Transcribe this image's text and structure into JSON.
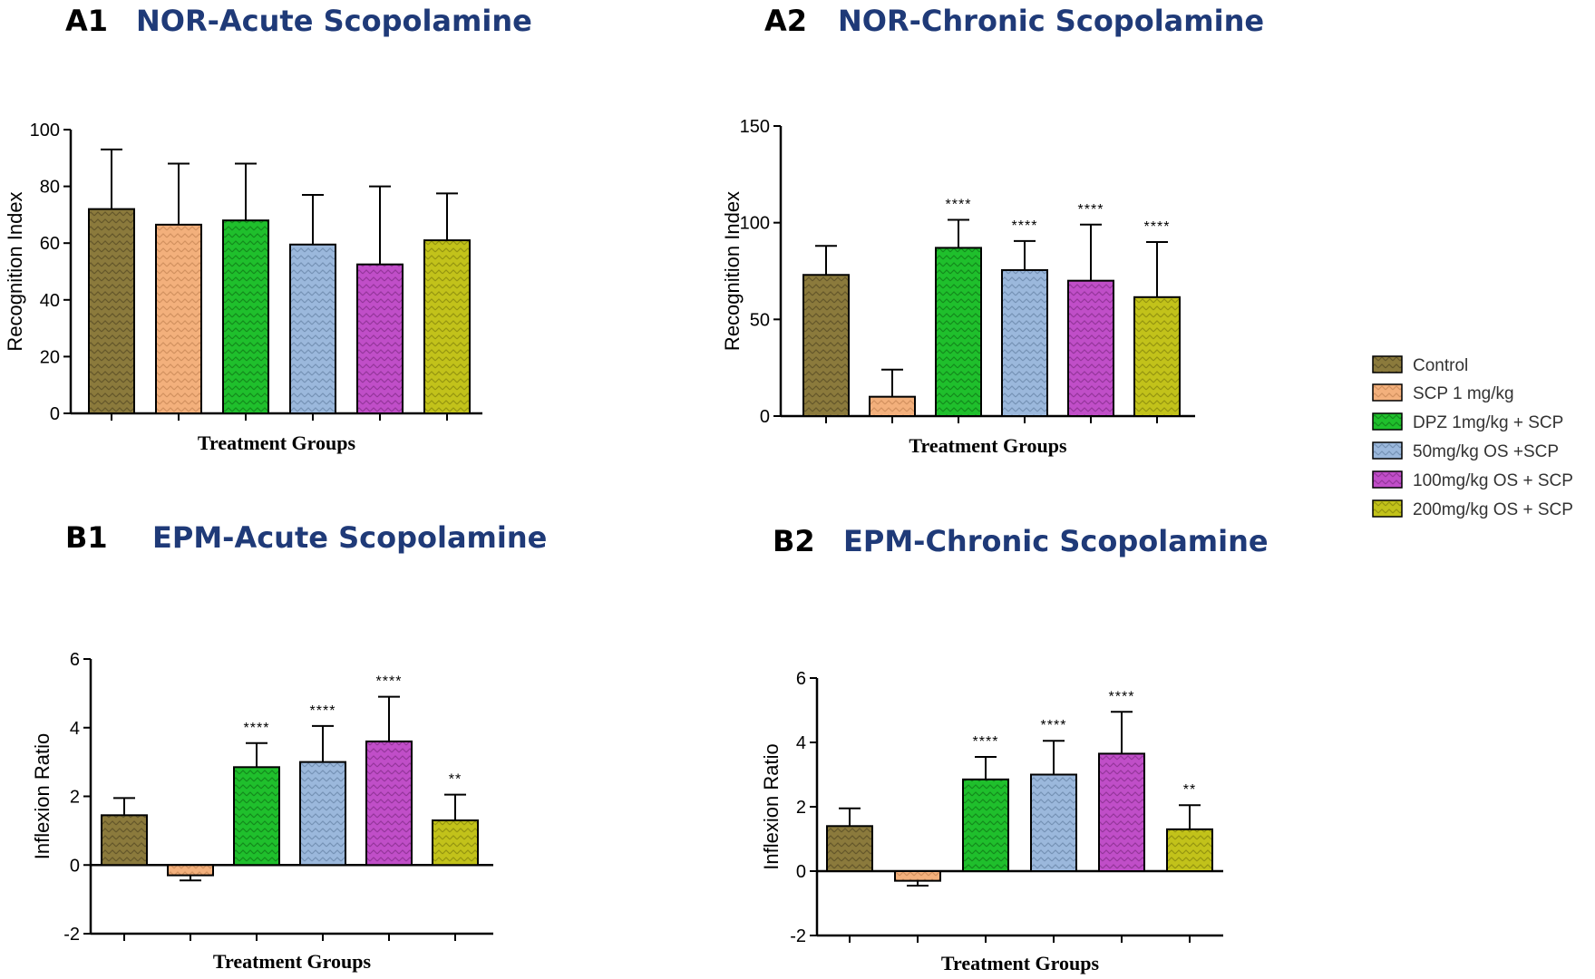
{
  "legend": {
    "entries": [
      "Control",
      "SCP 1 mg/kg",
      "DPZ 1mg/kg + SCP",
      "50mg/kg OS +SCP",
      "100mg/kg OS + SCP",
      "200mg/kg OS + SCP"
    ],
    "colors": [
      "#8b7a3c",
      "#f3b07c",
      "#1fbf2c",
      "#9bb8dc",
      "#c04ec8",
      "#c2c21a"
    ],
    "pattern_colors": [
      "#5a4e24",
      "#c98a58",
      "#0f7d18",
      "#6b88ab",
      "#8a2f90",
      "#8a8a0c"
    ]
  },
  "title_color": "#1f3a78",
  "chart_data": [
    {
      "id": "A1",
      "panel_label": "A1",
      "title": "NOR-Acute Scopolamine",
      "type": "bar",
      "ylabel": "Recognition Index",
      "xlabel": "Treatment Groups",
      "ylim": [
        0,
        100
      ],
      "yticks": [
        0,
        20,
        40,
        60,
        80,
        100
      ],
      "categories": [
        "Control",
        "SCP 1 mg/kg",
        "DPZ 1mg/kg + SCP",
        "50mg/kg OS +SCP",
        "100mg/kg OS + SCP",
        "200mg/kg OS + SCP"
      ],
      "values": [
        72,
        66.5,
        68,
        59.5,
        52.5,
        61
      ],
      "errors": [
        21,
        21.5,
        20,
        17.5,
        27.5,
        16.5
      ],
      "significance": [
        "",
        "",
        "",
        "",
        "",
        ""
      ]
    },
    {
      "id": "A2",
      "panel_label": "A2",
      "title": "NOR-Chronic Scopolamine",
      "type": "bar",
      "ylabel": "Recognition Index",
      "xlabel": "Treatment Groups",
      "ylim": [
        0,
        150
      ],
      "yticks": [
        0,
        50,
        100,
        150
      ],
      "categories": [
        "Control",
        "SCP 1 mg/kg",
        "DPZ 1mg/kg + SCP",
        "50mg/kg OS +SCP",
        "100mg/kg OS + SCP",
        "200mg/kg OS + SCP"
      ],
      "values": [
        73,
        10,
        87,
        75.5,
        70,
        61.5
      ],
      "errors": [
        15,
        14,
        14.5,
        15,
        29,
        28.5
      ],
      "significance": [
        "",
        "",
        "****",
        "****",
        "****",
        "****"
      ]
    },
    {
      "id": "B1",
      "panel_label": "B1",
      "title": "EPM-Acute Scopolamine",
      "type": "bar",
      "ylabel": "Inflexion Ratio",
      "xlabel": "Treatment Groups",
      "ylim": [
        -2,
        6
      ],
      "yticks": [
        -2,
        0,
        2,
        4,
        6
      ],
      "categories": [
        "Control",
        "SCP 1 mg/kg",
        "DPZ 1mg/kg + SCP",
        "50mg/kg OS +SCP",
        "100mg/kg OS + SCP",
        "200mg/kg OS + SCP"
      ],
      "values": [
        1.45,
        -0.3,
        2.85,
        3.0,
        3.6,
        1.3
      ],
      "errors": [
        0.5,
        0.15,
        0.7,
        1.05,
        1.3,
        0.75
      ],
      "significance": [
        "",
        "",
        "****",
        "****",
        "****",
        "**"
      ]
    },
    {
      "id": "B2",
      "panel_label": "B2",
      "title": "EPM-Chronic Scopolamine",
      "type": "bar",
      "ylabel": "Inflexion Ratio",
      "xlabel": "Treatment Groups",
      "ylim": [
        -2,
        6
      ],
      "yticks": [
        -2,
        0,
        2,
        4,
        6
      ],
      "categories": [
        "Control",
        "SCP 1 mg/kg",
        "DPZ 1mg/kg + SCP",
        "50mg/kg OS +SCP",
        "100mg/kg OS + SCP",
        "200mg/kg OS + SCP"
      ],
      "values": [
        1.4,
        -0.3,
        2.85,
        3.0,
        3.65,
        1.3
      ],
      "errors": [
        0.55,
        0.15,
        0.7,
        1.05,
        1.3,
        0.75
      ],
      "significance": [
        "",
        "",
        "****",
        "****",
        "****",
        "**"
      ]
    }
  ]
}
